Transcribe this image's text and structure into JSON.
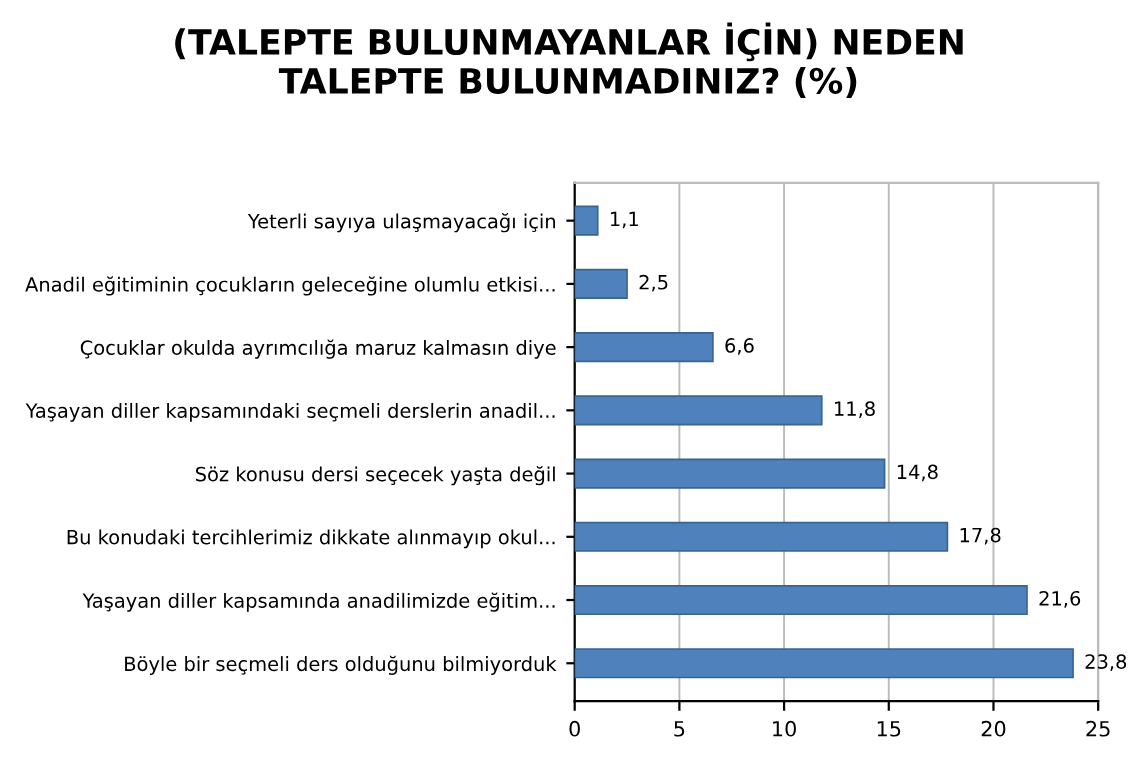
{
  "chart_data": {
    "type": "bar",
    "orientation": "horizontal",
    "title": "(TALEPTE BULUNMAYANLAR İÇİN) NEDEN\nTALEPTE BULUNMADINIZ? (%)",
    "categories": [
      "Yeterli sayıya ulaşmayacağı için",
      "Anadil eğitiminin çocukların geleceğine olumlu etkisi...",
      "Çocuklar okulda ayrımcılığa maruz kalmasın diye",
      "Yaşayan diller kapsamındaki seçmeli derslerin anadil...",
      "Söz konusu dersi seçecek yaşta değil",
      "Bu konudaki tercihlerimiz dikkate alınmayıp okul...",
      "Yaşayan diller kapsamında anadilimizde eğitim...",
      "Böyle bir seçmeli ders olduğunu bilmiyorduk"
    ],
    "values": [
      1.1,
      2.5,
      6.6,
      11.8,
      14.8,
      17.8,
      21.6,
      23.8
    ],
    "color": "#4f81bd",
    "data_labels": true,
    "value_labels": [
      "1,1",
      "2,5",
      "6,6",
      "11,8",
      "14,8",
      "17,8",
      "21,6",
      "23,8"
    ],
    "xlim": [
      0,
      25
    ],
    "xticks": [
      0,
      5,
      10,
      15,
      20,
      25
    ],
    "grid": "x",
    "legend": false
  }
}
